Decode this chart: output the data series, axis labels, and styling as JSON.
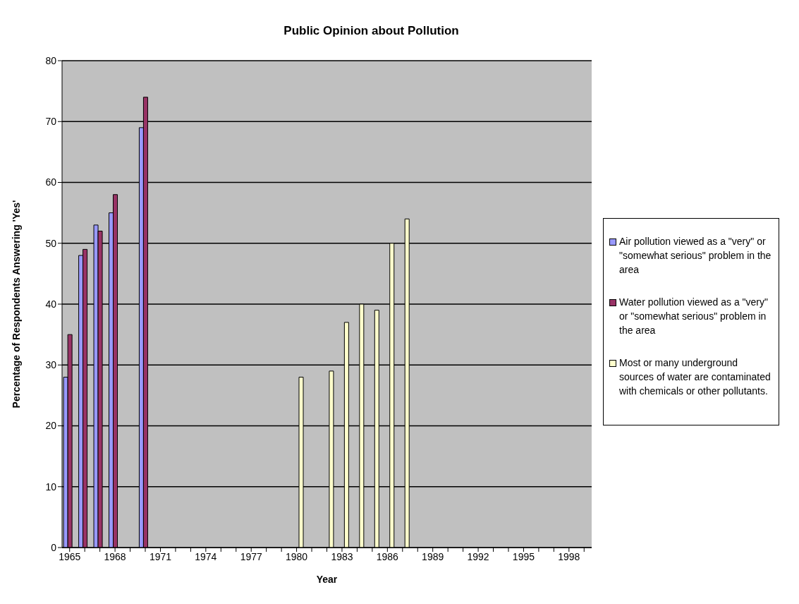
{
  "chart_data": {
    "type": "bar",
    "title": "Public Opinion about Pollution",
    "xlabel": "Year",
    "ylabel": "Percentage of Respondents Answering 'Yes'",
    "categories": [
      "1965",
      null,
      null,
      "1968",
      null,
      null,
      "1971",
      null,
      null,
      "1974",
      null,
      null,
      "1977",
      null,
      null,
      "1980",
      null,
      null,
      "1983",
      null,
      null,
      "1986",
      null,
      null,
      "1989",
      null,
      null,
      "1992",
      null,
      null,
      "1995",
      null,
      null,
      "1998",
      null
    ],
    "series": [
      {
        "name": "Air pollution viewed as a \"very\" or \"somewhat serious\" problem in the area",
        "color": "#9999ff",
        "values": [
          28,
          48,
          53,
          55,
          null,
          69,
          null,
          null,
          null,
          null,
          null,
          null,
          null,
          null,
          null,
          null,
          null,
          null,
          null,
          null,
          null,
          null,
          null,
          null,
          null,
          null,
          null,
          null,
          null,
          null,
          null,
          null,
          null,
          null,
          null
        ]
      },
      {
        "name": "Water pollution viewed as a \"very\" or \"somewhat serious\" problem in the area",
        "color": "#993366",
        "values": [
          35,
          49,
          52,
          58,
          null,
          74,
          null,
          null,
          null,
          null,
          null,
          null,
          null,
          null,
          null,
          null,
          null,
          null,
          null,
          null,
          null,
          null,
          null,
          null,
          null,
          null,
          null,
          null,
          null,
          null,
          null,
          null,
          null,
          null,
          null
        ]
      },
      {
        "name": "Most or many underground sources of water are contaminated with chemicals or other pollutants.",
        "color": "#ffffcc",
        "values": [
          null,
          null,
          null,
          null,
          null,
          null,
          null,
          null,
          null,
          null,
          null,
          null,
          null,
          null,
          null,
          28,
          null,
          29,
          37,
          40,
          39,
          50,
          54,
          null,
          null,
          null,
          null,
          null,
          null,
          null,
          null,
          null,
          null,
          null,
          null
        ]
      }
    ],
    "ylim": [
      0,
      80
    ],
    "yticks": [
      0,
      10,
      20,
      30,
      40,
      50,
      60,
      70,
      80
    ],
    "grid": "y",
    "legend": "right"
  }
}
